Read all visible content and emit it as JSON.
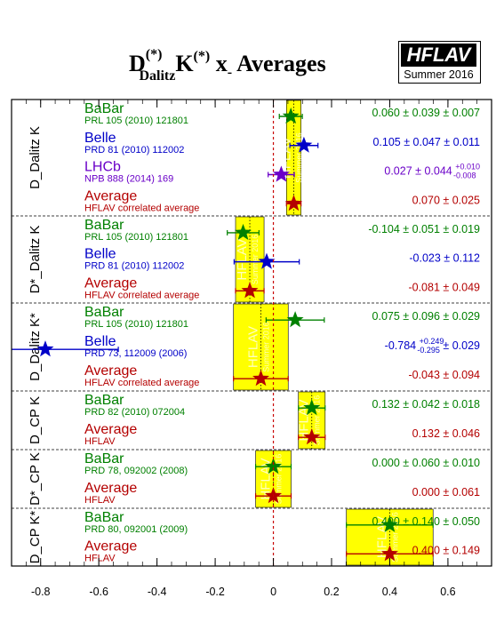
{
  "header": {
    "title_pre": "D",
    "title_sup1": "(*)",
    "title_sub": "Dalitz",
    "title_mid": "K",
    "title_sup2": "(*)",
    "title_post": " x",
    "title_sub2": "-",
    "title_end": " Averages",
    "logo_main": "HFLAV",
    "logo_sub": "Summer 2016"
  },
  "chart_data": {
    "type": "scatter",
    "xlim": [
      -0.9,
      0.75
    ],
    "xticks": [
      -0.8,
      -0.6,
      -0.4,
      -0.2,
      0,
      0.2,
      0.4,
      0.6
    ],
    "watermark": "HFLAV",
    "watermark_sub": "Summer 2016",
    "colors": {
      "babar": "#008000",
      "belle": "#0000c8",
      "lhcb": "#6a00c8",
      "average": "#b40000",
      "band": "#ffff00"
    },
    "groups": [
      {
        "label": "D_Dalitz K",
        "avg": 0.07,
        "err": 0.025,
        "entries": [
          {
            "exp": "BaBar",
            "ref": "PRL 105 (2010) 121801",
            "kind": "babar",
            "value": 0.06,
            "err_low": 0.0396,
            "err_high": 0.0396,
            "text": "0.060 ± 0.039 ± 0.007"
          },
          {
            "exp": "Belle",
            "ref": "PRD 81 (2010) 112002",
            "kind": "belle",
            "value": 0.105,
            "err_low": 0.0483,
            "err_high": 0.0483,
            "text": "0.105 ± 0.047 ± 0.011"
          },
          {
            "exp": "LHCb",
            "ref": "NPB 888 (2014) 169",
            "kind": "lhcb",
            "value": 0.027,
            "err_low": 0.045,
            "err_high": 0.045,
            "text_main": "0.027 ± 0.044 ",
            "text_up": "+0.010",
            "text_down": "-0.008"
          },
          {
            "exp": "Average",
            "ref": "HFLAV correlated average",
            "kind": "average",
            "value": 0.07,
            "err_low": 0.025,
            "err_high": 0.025,
            "text": "0.070 ± 0.025"
          }
        ]
      },
      {
        "label": "D*_Dalitz K",
        "avg": -0.081,
        "err": 0.049,
        "entries": [
          {
            "exp": "BaBar",
            "ref": "PRL 105 (2010) 121801",
            "kind": "babar",
            "value": -0.104,
            "err_low": 0.0545,
            "err_high": 0.0545,
            "text": "-0.104 ± 0.051 ± 0.019"
          },
          {
            "exp": "Belle",
            "ref": "PRD 81 (2010) 112002",
            "kind": "belle",
            "value": -0.023,
            "err_low": 0.112,
            "err_high": 0.112,
            "text": "-0.023 ± 0.112"
          },
          {
            "exp": "Average",
            "ref": "HFLAV correlated average",
            "kind": "average",
            "value": -0.081,
            "err_low": 0.049,
            "err_high": 0.049,
            "text": "-0.081 ± 0.049"
          }
        ]
      },
      {
        "label": "D_Dalitz K*",
        "avg": -0.043,
        "err": 0.094,
        "entries": [
          {
            "exp": "BaBar",
            "ref": "PRL 105 (2010) 121801",
            "kind": "babar",
            "value": 0.075,
            "err_low": 0.1,
            "err_high": 0.1,
            "text": "0.075 ± 0.096 ± 0.029"
          },
          {
            "exp": "Belle",
            "ref": "PRD 73, 112009 (2006)",
            "kind": "belle",
            "value": -0.784,
            "err_low": 0.296,
            "err_high": 0.251,
            "text_main": "-0.784 ",
            "text_up": "+0.249",
            "text_down": "-0.295",
            "text_tail": " ± 0.029"
          },
          {
            "exp": "Average",
            "ref": "HFLAV correlated average",
            "kind": "average",
            "value": -0.043,
            "err_low": 0.094,
            "err_high": 0.094,
            "text": "-0.043 ± 0.094"
          }
        ]
      },
      {
        "label": "D_CP K",
        "avg": 0.132,
        "err": 0.046,
        "entries": [
          {
            "exp": "BaBar",
            "ref": "PRD 82 (2010) 072004",
            "kind": "babar",
            "value": 0.132,
            "err_low": 0.0458,
            "err_high": 0.0458,
            "text": "0.132 ± 0.042 ± 0.018"
          },
          {
            "exp": "Average",
            "ref": "HFLAV",
            "kind": "average",
            "value": 0.132,
            "err_low": 0.046,
            "err_high": 0.046,
            "text": "0.132 ± 0.046"
          }
        ]
      },
      {
        "label": "D*_CP K",
        "avg": 0.0,
        "err": 0.061,
        "entries": [
          {
            "exp": "BaBar",
            "ref": "PRD 78, 092002 (2008)",
            "kind": "babar",
            "value": 0.0,
            "err_low": 0.061,
            "err_high": 0.061,
            "text": "0.000 ± 0.060 ± 0.010"
          },
          {
            "exp": "Average",
            "ref": "HFLAV",
            "kind": "average",
            "value": 0.0,
            "err_low": 0.061,
            "err_high": 0.061,
            "text": "0.000 ± 0.061"
          }
        ]
      },
      {
        "label": "D_CP K*",
        "avg": 0.4,
        "err": 0.149,
        "entries": [
          {
            "exp": "BaBar",
            "ref": "PRD 80, 092001 (2009)",
            "kind": "babar",
            "value": 0.4,
            "err_low": 0.149,
            "err_high": 0.149,
            "text": "0.400 ± 0.140 ± 0.050"
          },
          {
            "exp": "Average",
            "ref": "HFLAV",
            "kind": "average",
            "value": 0.4,
            "err_low": 0.149,
            "err_high": 0.149,
            "text": "0.400 ± 0.149"
          }
        ]
      }
    ]
  }
}
